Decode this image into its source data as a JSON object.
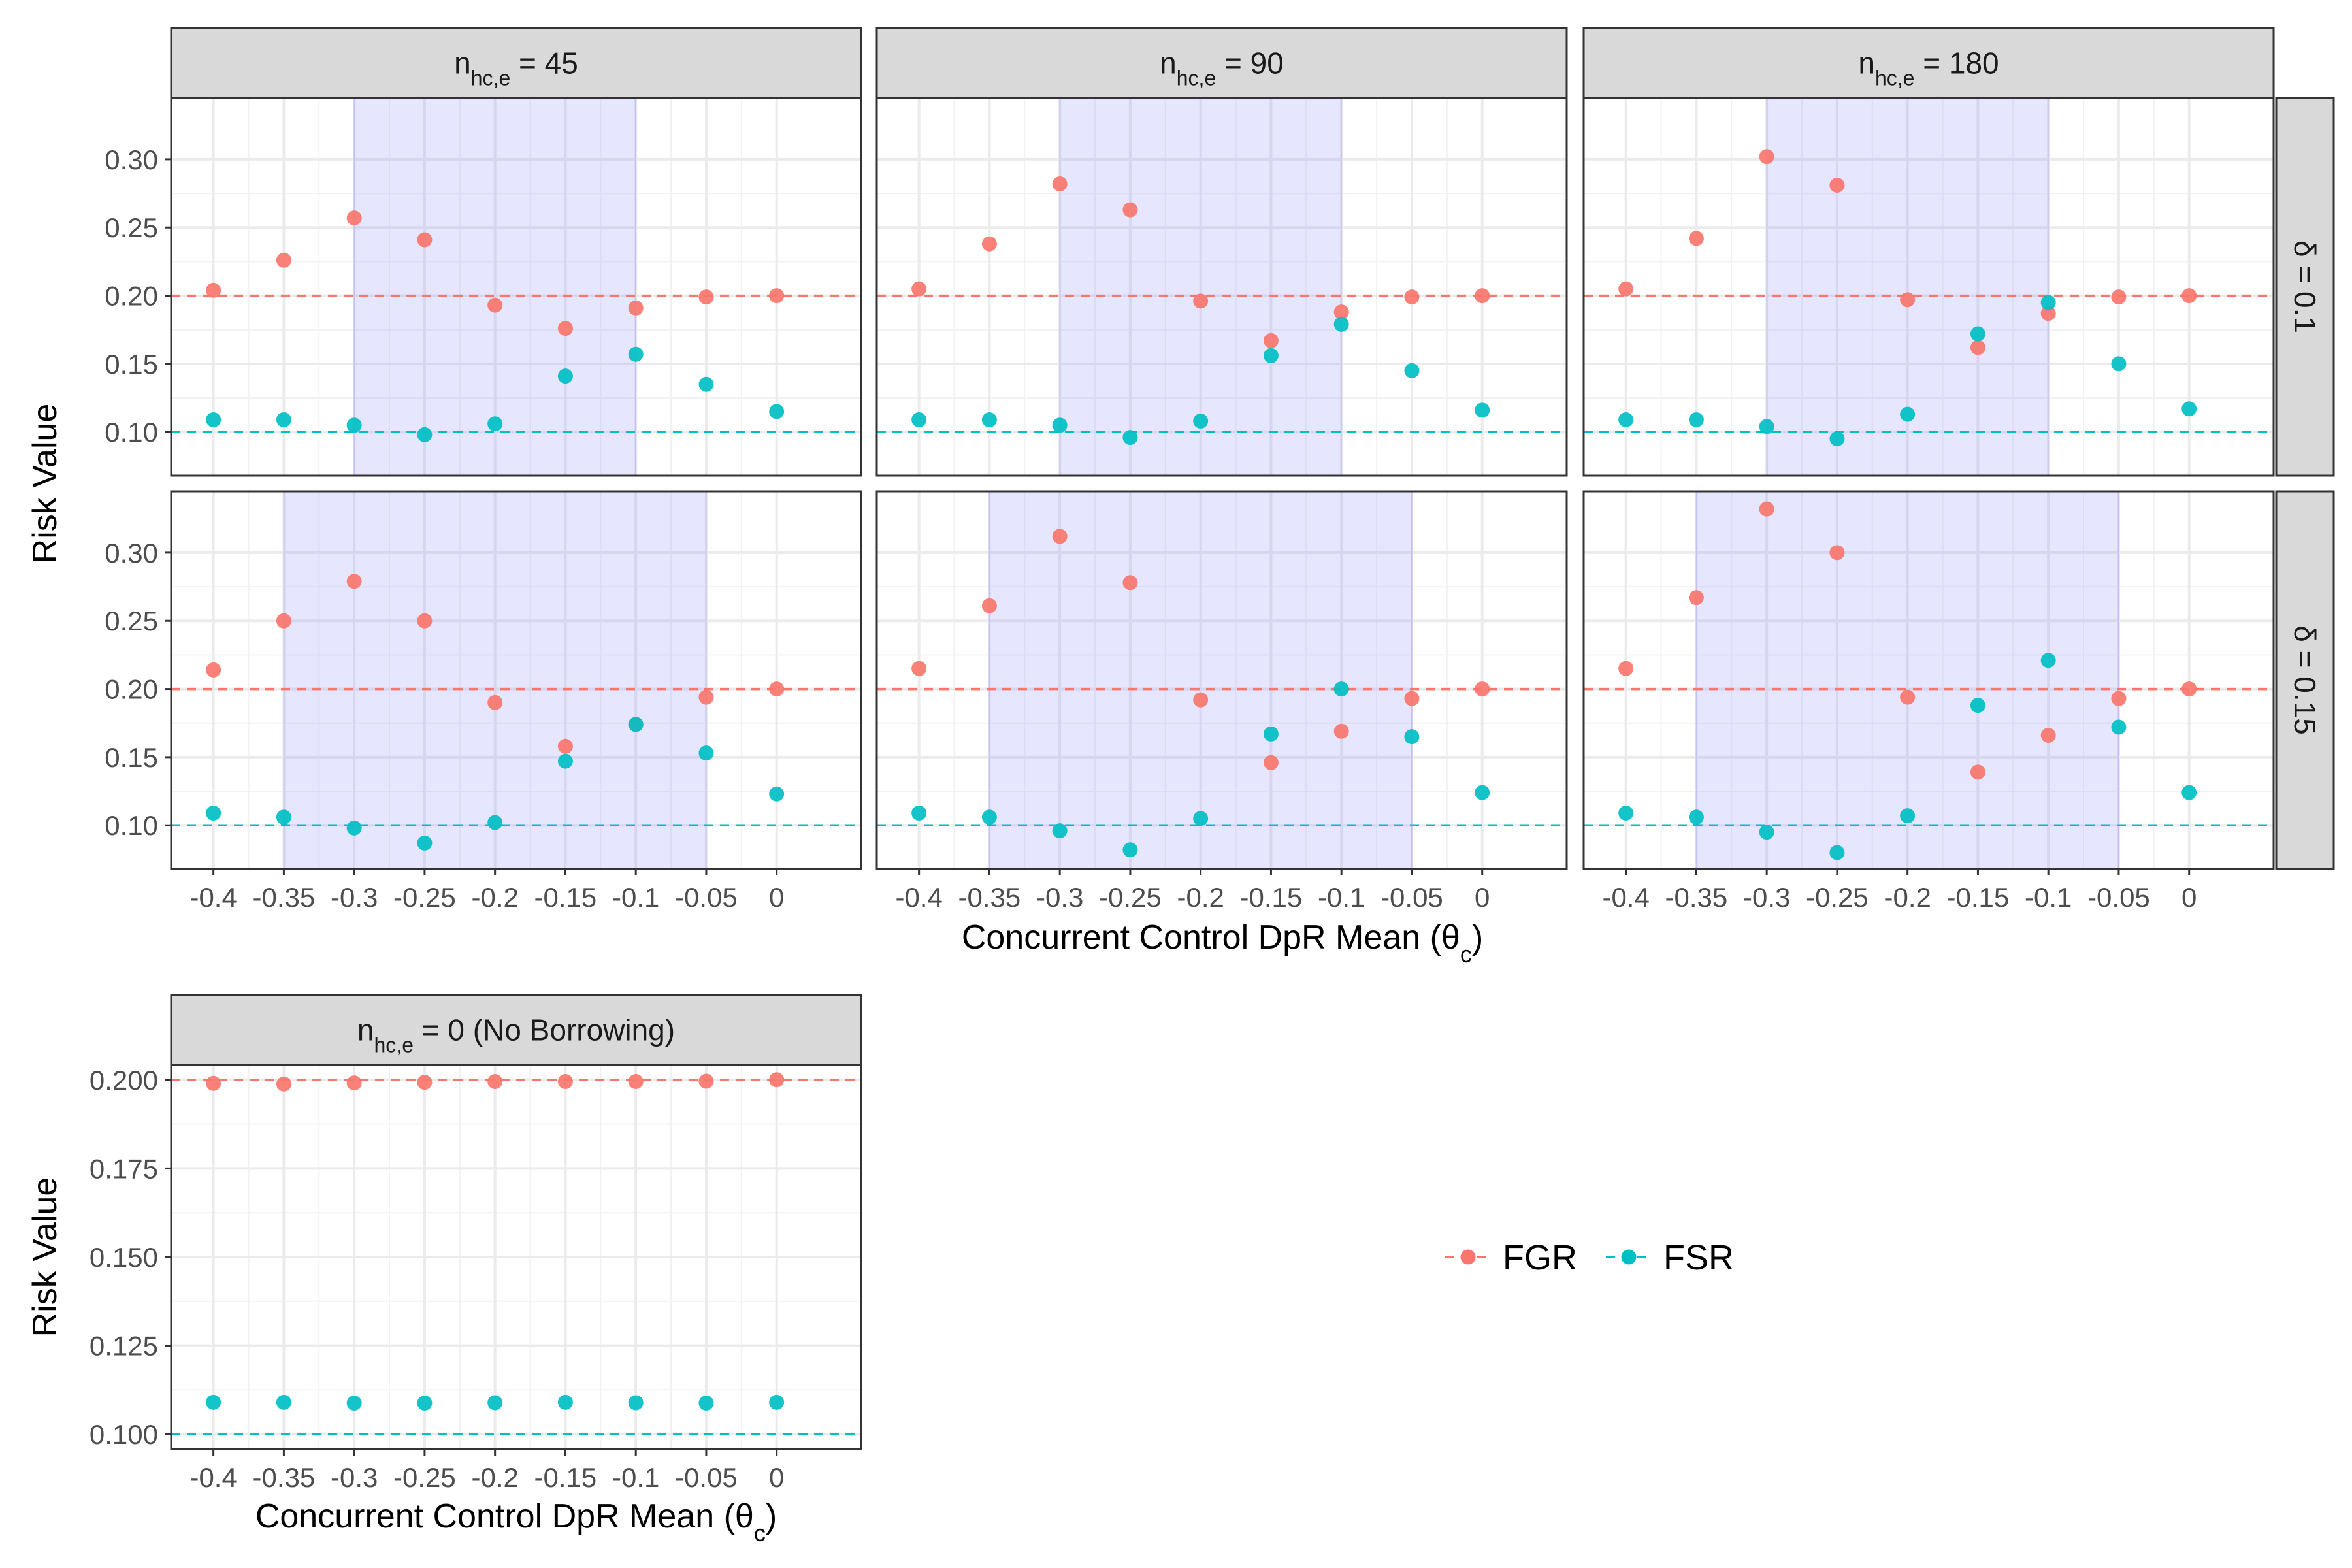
{
  "chart_data": {
    "type": "scatter",
    "x_ticks": [
      -0.4,
      -0.35,
      -0.3,
      -0.25,
      -0.2,
      -0.15,
      -0.1,
      -0.05,
      0
    ],
    "x_tick_labels": [
      "-0.4",
      "-0.35",
      "-0.3",
      "-0.25",
      "-0.2",
      "-0.15",
      "-0.1",
      "-0.05",
      "0"
    ],
    "xlabel": "Concurrent Control DpR Mean (θ",
    "xlabel_sub": "c",
    "xlabel_close": ")",
    "ylabel": "Risk Value",
    "grid": true,
    "legend": {
      "position": "right",
      "entries": [
        {
          "name": "FGR",
          "color": "#F8766D"
        },
        {
          "name": "FSR",
          "color": "#00BFC4"
        }
      ]
    },
    "reference_lines": [
      {
        "series": "FGR",
        "y": 0.2,
        "color": "#F8766D",
        "style": "dashed"
      },
      {
        "series": "FSR",
        "y": 0.1,
        "color": "#00BFC4",
        "style": "dashed"
      }
    ],
    "shade_color": "#8C8CFF",
    "facet_grid": {
      "col_strips": [
        {
          "main": "n",
          "sub": "hc,e",
          "rest": " = 45"
        },
        {
          "main": "n",
          "sub": "hc,e",
          "rest": " = 90"
        },
        {
          "main": "n",
          "sub": "hc,e",
          "rest": " = 180"
        }
      ],
      "row_strips": [
        "δ = 0.1",
        "δ = 0.15"
      ],
      "ylim": [
        0.068,
        0.345
      ],
      "y_ticks": [
        0.1,
        0.15,
        0.2,
        0.25,
        0.3
      ],
      "y_tick_labels": [
        "0.10",
        "0.15",
        "0.20",
        "0.25",
        "0.30"
      ],
      "panels": [
        {
          "row": 0,
          "col": 0,
          "shade": [
            -0.3,
            -0.1
          ],
          "FGR": [
            0.204,
            0.226,
            0.257,
            0.241,
            0.193,
            0.176,
            0.191,
            0.199,
            0.2
          ],
          "FSR": [
            0.109,
            0.109,
            0.105,
            0.098,
            0.106,
            0.141,
            0.157,
            0.135,
            0.115
          ]
        },
        {
          "row": 0,
          "col": 1,
          "shade": [
            -0.3,
            -0.1
          ],
          "FGR": [
            0.205,
            0.238,
            0.282,
            0.263,
            0.196,
            0.167,
            0.188,
            0.199,
            0.2
          ],
          "FSR": [
            0.109,
            0.109,
            0.105,
            0.096,
            0.108,
            0.156,
            0.179,
            0.145,
            0.116
          ]
        },
        {
          "row": 0,
          "col": 2,
          "shade": [
            -0.3,
            -0.1
          ],
          "FGR": [
            0.205,
            0.242,
            0.302,
            0.281,
            0.197,
            0.162,
            0.187,
            0.199,
            0.2
          ],
          "FSR": [
            0.109,
            0.109,
            0.104,
            0.095,
            0.113,
            0.172,
            0.195,
            0.15,
            0.117
          ]
        },
        {
          "row": 1,
          "col": 0,
          "shade": [
            -0.35,
            -0.05
          ],
          "FGR": [
            0.214,
            0.25,
            0.279,
            0.25,
            0.19,
            0.158,
            0.174,
            0.194,
            0.2
          ],
          "FSR": [
            0.109,
            0.106,
            0.098,
            0.087,
            0.102,
            0.147,
            0.174,
            0.153,
            0.123
          ]
        },
        {
          "row": 1,
          "col": 1,
          "shade": [
            -0.35,
            -0.05
          ],
          "FGR": [
            0.215,
            0.261,
            0.312,
            0.278,
            0.192,
            0.146,
            0.169,
            0.193,
            0.2
          ],
          "FSR": [
            0.109,
            0.106,
            0.096,
            0.082,
            0.105,
            0.167,
            0.2,
            0.165,
            0.124
          ]
        },
        {
          "row": 1,
          "col": 2,
          "shade": [
            -0.35,
            -0.05
          ],
          "FGR": [
            0.215,
            0.267,
            0.332,
            0.3,
            0.194,
            0.139,
            0.166,
            0.193,
            0.2
          ],
          "FSR": [
            0.109,
            0.106,
            0.095,
            0.08,
            0.107,
            0.188,
            0.221,
            0.172,
            0.124
          ]
        }
      ]
    },
    "no_borrowing": {
      "strip": {
        "main": "n",
        "sub": "hc,e",
        "rest": " = 0 (No Borrowing)"
      },
      "ylim": [
        0.0958,
        0.2042
      ],
      "y_ticks": [
        0.1,
        0.125,
        0.15,
        0.175,
        0.2
      ],
      "y_tick_labels": [
        "0.100",
        "0.125",
        "0.150",
        "0.175",
        "0.200"
      ],
      "FGR": [
        0.199,
        0.1988,
        0.1991,
        0.1993,
        0.1995,
        0.1995,
        0.1995,
        0.1996,
        0.2
      ],
      "FSR": [
        0.109,
        0.109,
        0.1088,
        0.1088,
        0.1089,
        0.109,
        0.1089,
        0.1088,
        0.109
      ]
    }
  }
}
